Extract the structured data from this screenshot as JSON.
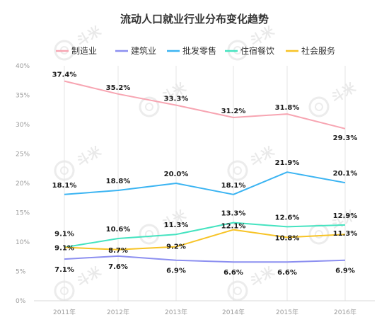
{
  "chart_data": {
    "type": "line",
    "title": "流动人口就业行业分布变化趋势",
    "categories": [
      "2011年",
      "2012年",
      "2013年",
      "2014年",
      "2015年",
      "2016年"
    ],
    "yticks": [
      "0%",
      "5%",
      "10%",
      "15%",
      "20%",
      "25%",
      "30%",
      "35%",
      "40%"
    ],
    "ylim": [
      0,
      40
    ],
    "grid": "vertical",
    "legend_position": "top",
    "series": [
      {
        "name": "制造业",
        "color": "#f7a5b2",
        "values": [
          37.4,
          35.2,
          33.3,
          31.2,
          31.8,
          29.3
        ],
        "labels": [
          "37.4%",
          "35.2%",
          "33.3%",
          "31.2%",
          "31.8%",
          "29.3%"
        ]
      },
      {
        "name": "建筑业",
        "color": "#8c8ff0",
        "values": [
          7.1,
          7.6,
          6.9,
          6.6,
          6.6,
          6.9
        ],
        "labels": [
          "7.1%",
          "7.6%",
          "6.9%",
          "6.6%",
          "6.6%",
          "6.9%"
        ]
      },
      {
        "name": "批发零售",
        "color": "#3bb4f2",
        "values": [
          18.1,
          18.8,
          20.0,
          18.1,
          21.9,
          20.1
        ],
        "labels": [
          "18.1%",
          "18.8%",
          "20.0%",
          "18.1%",
          "21.9%",
          "20.1%"
        ]
      },
      {
        "name": "住宿餐饮",
        "color": "#45e3c0",
        "values": [
          9.1,
          10.6,
          11.3,
          13.3,
          12.6,
          12.9
        ],
        "labels": [
          "9.1%",
          "10.6%",
          "11.3%",
          "13.3%",
          "12.6%",
          "12.9%"
        ]
      },
      {
        "name": "社会服务",
        "color": "#f7c325",
        "values": [
          9.1,
          8.7,
          9.2,
          12.1,
          10.8,
          11.3
        ],
        "labels": [
          "9.1%",
          "8.7%",
          "9.2%",
          "12.1%",
          "10.8%",
          "11.3%"
        ]
      }
    ]
  },
  "watermark": {
    "text": "斗米"
  }
}
